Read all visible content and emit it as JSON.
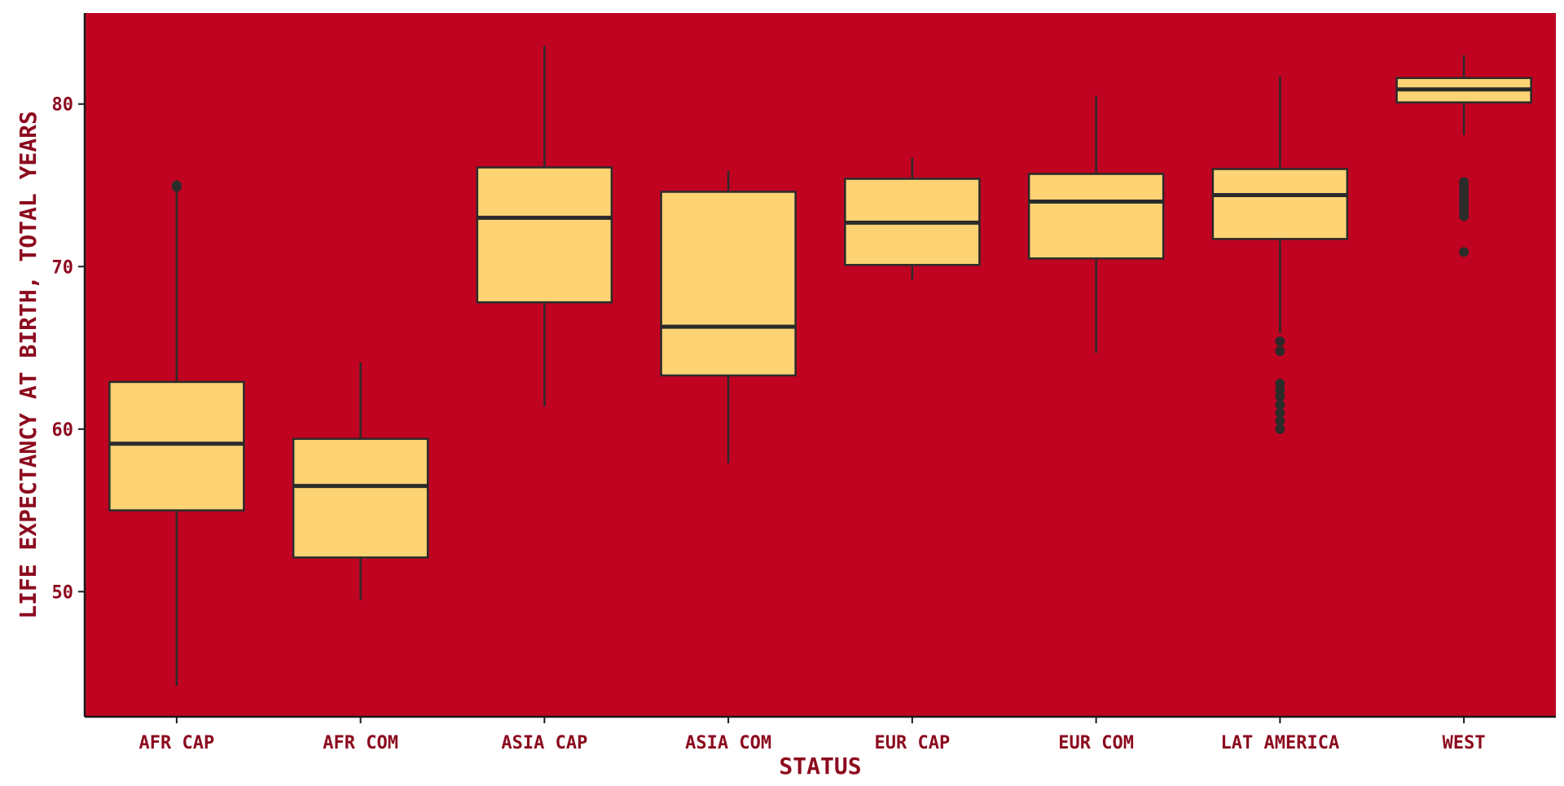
{
  "chart_data": {
    "type": "boxplot",
    "title": "",
    "xlabel": "STATUS",
    "ylabel": "LIFE EXPECTANCY AT BIRTH, TOTAL YEARS",
    "ylim": [
      42.3,
      85.6
    ],
    "yticks": [
      50,
      60,
      70,
      80
    ],
    "grid": false,
    "legend": "none",
    "categories": [
      "AFR CAP",
      "AFR COM",
      "ASIA CAP",
      "ASIA COM",
      "EUR CAP",
      "EUR COM",
      "LAT AMERICA",
      "WEST"
    ],
    "boxes": [
      {
        "category": "AFR CAP",
        "whisker_low": 44.2,
        "q1": 55.0,
        "median": 59.1,
        "q3": 62.9,
        "whisker_high": 74.7,
        "outliers": [
          74.9,
          75.0
        ]
      },
      {
        "category": "AFR COM",
        "whisker_low": 49.5,
        "q1": 52.1,
        "median": 56.5,
        "q3": 59.4,
        "whisker_high": 64.1,
        "outliers": []
      },
      {
        "category": "ASIA CAP",
        "whisker_low": 61.4,
        "q1": 67.8,
        "median": 73.0,
        "q3": 76.1,
        "whisker_high": 83.6,
        "outliers": []
      },
      {
        "category": "ASIA COM",
        "whisker_low": 57.9,
        "q1": 63.3,
        "median": 66.3,
        "q3": 74.6,
        "whisker_high": 75.9,
        "outliers": []
      },
      {
        "category": "EUR CAP",
        "whisker_low": 69.2,
        "q1": 70.1,
        "median": 72.7,
        "q3": 75.4,
        "whisker_high": 76.7,
        "outliers": []
      },
      {
        "category": "EUR COM",
        "whisker_low": 64.7,
        "q1": 70.5,
        "median": 74.0,
        "q3": 75.7,
        "whisker_high": 80.5,
        "outliers": []
      },
      {
        "category": "LAT AMERICA",
        "whisker_low": 65.9,
        "q1": 71.7,
        "median": 74.4,
        "q3": 76.0,
        "whisker_high": 81.7,
        "outliers": [
          65.4,
          64.8,
          62.8,
          62.4,
          62.0,
          61.5,
          61.0,
          60.5,
          60.0
        ]
      },
      {
        "category": "WEST",
        "whisker_low": 78.1,
        "q1": 80.1,
        "median": 80.9,
        "q3": 81.6,
        "whisker_high": 83.0,
        "outliers": [
          75.2,
          74.9,
          74.6,
          74.3,
          74.0,
          73.7,
          73.4,
          73.1,
          70.9
        ]
      }
    ],
    "colors": {
      "panel_background": "#c00321",
      "box_fill": "#fdd374",
      "box_stroke": "#2b2b2b",
      "axis_line": "#1a1a1a",
      "text": "#8c0a1e"
    }
  }
}
